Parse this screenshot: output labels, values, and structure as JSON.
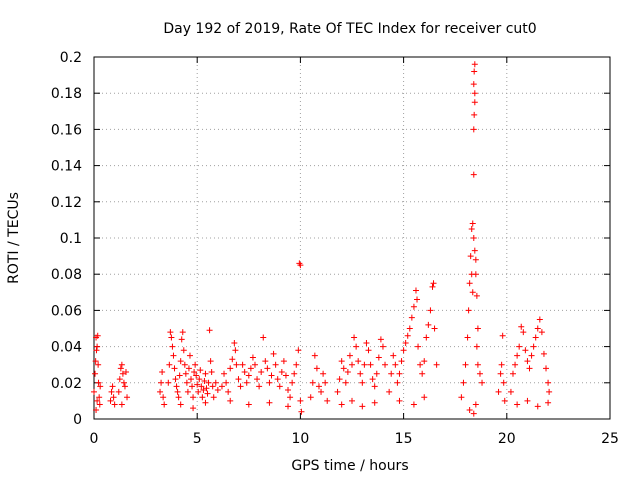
{
  "chart_data": {
    "type": "scatter",
    "title": "Day 192 of 2019, Rate Of TEC Index for receiver cut0",
    "xlabel": "GPS time / hours",
    "ylabel": "ROTI / TECUs",
    "xlim": [
      0,
      25
    ],
    "ylim": [
      0,
      0.2
    ],
    "xticks": [
      0,
      5,
      10,
      15,
      20,
      25
    ],
    "yticks": [
      0,
      0.02,
      0.04,
      0.06,
      0.08,
      0.1,
      0.12,
      0.14,
      0.16,
      0.18,
      0.2
    ],
    "xtick_labels": [
      "0",
      "5",
      "10",
      "15",
      "20",
      "25"
    ],
    "ytick_labels": [
      "0",
      "0.02",
      "0.04",
      "0.06",
      "0.08",
      "0.1",
      "0.12",
      "0.14",
      "0.16",
      "0.18",
      "0.2"
    ],
    "grid": true,
    "marker": "plus",
    "color": "#ff0000",
    "series": [
      {
        "name": "ROTI",
        "points": [
          [
            0.0,
            0.015
          ],
          [
            0.05,
            0.025
          ],
          [
            0.08,
            0.032
          ],
          [
            0.1,
            0.045
          ],
          [
            0.12,
            0.038
          ],
          [
            0.15,
            0.04
          ],
          [
            0.18,
            0.046
          ],
          [
            0.2,
            0.03
          ],
          [
            0.22,
            0.02
          ],
          [
            0.25,
            0.012
          ],
          [
            0.28,
            0.008
          ],
          [
            0.3,
            0.018
          ],
          [
            0.1,
            0.005
          ],
          [
            0.15,
            0.01
          ],
          [
            0.8,
            0.01
          ],
          [
            0.85,
            0.015
          ],
          [
            0.9,
            0.018
          ],
          [
            0.95,
            0.012
          ],
          [
            1.0,
            0.008
          ],
          [
            1.2,
            0.015
          ],
          [
            1.25,
            0.022
          ],
          [
            1.3,
            0.028
          ],
          [
            1.35,
            0.03
          ],
          [
            1.4,
            0.025
          ],
          [
            1.45,
            0.02
          ],
          [
            1.5,
            0.018
          ],
          [
            1.55,
            0.026
          ],
          [
            1.6,
            0.012
          ],
          [
            1.35,
            0.008
          ],
          [
            3.2,
            0.015
          ],
          [
            3.25,
            0.02
          ],
          [
            3.3,
            0.026
          ],
          [
            3.35,
            0.012
          ],
          [
            3.4,
            0.008
          ],
          [
            3.6,
            0.02
          ],
          [
            3.65,
            0.03
          ],
          [
            3.7,
            0.048
          ],
          [
            3.75,
            0.045
          ],
          [
            3.8,
            0.04
          ],
          [
            3.85,
            0.035
          ],
          [
            3.9,
            0.028
          ],
          [
            3.95,
            0.022
          ],
          [
            4.0,
            0.018
          ],
          [
            4.05,
            0.015
          ],
          [
            4.1,
            0.012
          ],
          [
            4.15,
            0.024
          ],
          [
            4.2,
            0.032
          ],
          [
            4.25,
            0.044
          ],
          [
            4.3,
            0.048
          ],
          [
            4.35,
            0.038
          ],
          [
            4.4,
            0.03
          ],
          [
            4.45,
            0.025
          ],
          [
            4.5,
            0.02
          ],
          [
            4.55,
            0.015
          ],
          [
            4.6,
            0.028
          ],
          [
            4.65,
            0.035
          ],
          [
            4.7,
            0.022
          ],
          [
            4.75,
            0.018
          ],
          [
            4.8,
            0.012
          ],
          [
            4.85,
            0.026
          ],
          [
            4.9,
            0.03
          ],
          [
            4.95,
            0.024
          ],
          [
            5.0,
            0.019
          ],
          [
            5.05,
            0.015
          ],
          [
            5.1,
            0.022
          ],
          [
            5.15,
            0.027
          ],
          [
            5.2,
            0.018
          ],
          [
            5.25,
            0.012
          ],
          [
            5.3,
            0.016
          ],
          [
            5.35,
            0.021
          ],
          [
            5.4,
            0.025
          ],
          [
            5.45,
            0.017
          ],
          [
            5.5,
            0.014
          ],
          [
            5.55,
            0.02
          ],
          [
            5.6,
            0.049
          ],
          [
            5.65,
            0.032
          ],
          [
            5.7,
            0.026
          ],
          [
            5.75,
            0.018
          ],
          [
            5.8,
            0.012
          ],
          [
            5.9,
            0.02
          ],
          [
            6.0,
            0.016
          ],
          [
            4.2,
            0.008
          ],
          [
            4.8,
            0.006
          ],
          [
            5.4,
            0.009
          ],
          [
            6.2,
            0.018
          ],
          [
            6.3,
            0.025
          ],
          [
            6.4,
            0.02
          ],
          [
            6.5,
            0.015
          ],
          [
            6.6,
            0.028
          ],
          [
            6.7,
            0.033
          ],
          [
            6.8,
            0.042
          ],
          [
            6.85,
            0.038
          ],
          [
            6.9,
            0.03
          ],
          [
            7.0,
            0.022
          ],
          [
            7.1,
            0.018
          ],
          [
            7.2,
            0.03
          ],
          [
            7.3,
            0.026
          ],
          [
            7.4,
            0.02
          ],
          [
            7.5,
            0.024
          ],
          [
            7.6,
            0.028
          ],
          [
            7.7,
            0.034
          ],
          [
            7.8,
            0.03
          ],
          [
            7.9,
            0.022
          ],
          [
            8.0,
            0.018
          ],
          [
            8.1,
            0.026
          ],
          [
            8.2,
            0.045
          ],
          [
            8.3,
            0.032
          ],
          [
            8.4,
            0.028
          ],
          [
            8.5,
            0.02
          ],
          [
            8.6,
            0.024
          ],
          [
            8.7,
            0.036
          ],
          [
            8.8,
            0.03
          ],
          [
            8.9,
            0.022
          ],
          [
            9.0,
            0.018
          ],
          [
            9.1,
            0.026
          ],
          [
            9.2,
            0.032
          ],
          [
            9.3,
            0.024
          ],
          [
            9.4,
            0.016
          ],
          [
            9.5,
            0.012
          ],
          [
            9.6,
            0.02
          ],
          [
            9.7,
            0.025
          ],
          [
            9.8,
            0.03
          ],
          [
            9.9,
            0.038
          ],
          [
            10.0,
            0.01
          ],
          [
            10.05,
            0.004
          ],
          [
            6.6,
            0.01
          ],
          [
            7.5,
            0.008
          ],
          [
            8.5,
            0.009
          ],
          [
            9.4,
            0.007
          ],
          [
            9.95,
            0.086
          ],
          [
            10.0,
            0.085
          ],
          [
            10.5,
            0.012
          ],
          [
            10.6,
            0.02
          ],
          [
            10.7,
            0.035
          ],
          [
            10.8,
            0.028
          ],
          [
            10.9,
            0.018
          ],
          [
            11.0,
            0.015
          ],
          [
            11.1,
            0.025
          ],
          [
            11.2,
            0.02
          ],
          [
            11.3,
            0.01
          ],
          [
            11.8,
            0.015
          ],
          [
            11.9,
            0.022
          ],
          [
            12.0,
            0.032
          ],
          [
            12.1,
            0.028
          ],
          [
            12.2,
            0.02
          ],
          [
            12.3,
            0.026
          ],
          [
            12.4,
            0.035
          ],
          [
            12.5,
            0.03
          ],
          [
            12.6,
            0.045
          ],
          [
            12.7,
            0.04
          ],
          [
            12.8,
            0.032
          ],
          [
            12.9,
            0.025
          ],
          [
            13.0,
            0.02
          ],
          [
            13.1,
            0.03
          ],
          [
            13.2,
            0.042
          ],
          [
            13.3,
            0.038
          ],
          [
            13.4,
            0.03
          ],
          [
            13.5,
            0.022
          ],
          [
            13.6,
            0.018
          ],
          [
            13.7,
            0.025
          ],
          [
            13.8,
            0.034
          ],
          [
            13.9,
            0.044
          ],
          [
            14.0,
            0.04
          ],
          [
            14.1,
            0.03
          ],
          [
            12.0,
            0.008
          ],
          [
            12.5,
            0.01
          ],
          [
            13.0,
            0.007
          ],
          [
            13.6,
            0.009
          ],
          [
            14.3,
            0.015
          ],
          [
            14.4,
            0.025
          ],
          [
            14.5,
            0.035
          ],
          [
            14.6,
            0.03
          ],
          [
            14.7,
            0.02
          ],
          [
            14.8,
            0.025
          ],
          [
            14.9,
            0.032
          ],
          [
            15.0,
            0.038
          ],
          [
            15.1,
            0.042
          ],
          [
            15.2,
            0.046
          ],
          [
            15.3,
            0.05
          ],
          [
            15.4,
            0.056
          ],
          [
            15.5,
            0.062
          ],
          [
            15.6,
            0.071
          ],
          [
            15.65,
            0.066
          ],
          [
            15.7,
            0.04
          ],
          [
            15.8,
            0.03
          ],
          [
            15.9,
            0.025
          ],
          [
            16.0,
            0.032
          ],
          [
            16.1,
            0.045
          ],
          [
            16.2,
            0.052
          ],
          [
            16.3,
            0.06
          ],
          [
            16.4,
            0.073
          ],
          [
            16.45,
            0.075
          ],
          [
            16.5,
            0.05
          ],
          [
            16.6,
            0.03
          ],
          [
            14.8,
            0.01
          ],
          [
            15.5,
            0.008
          ],
          [
            16.0,
            0.012
          ],
          [
            17.8,
            0.012
          ],
          [
            17.9,
            0.02
          ],
          [
            18.0,
            0.03
          ],
          [
            18.1,
            0.045
          ],
          [
            18.15,
            0.06
          ],
          [
            18.2,
            0.075
          ],
          [
            18.25,
            0.09
          ],
          [
            18.3,
            0.105
          ],
          [
            18.35,
            0.108
          ],
          [
            18.4,
            0.1
          ],
          [
            18.45,
            0.093
          ],
          [
            18.5,
            0.08
          ],
          [
            18.55,
            0.068
          ],
          [
            18.6,
            0.05
          ],
          [
            18.4,
            0.135
          ],
          [
            18.4,
            0.16
          ],
          [
            18.42,
            0.168
          ],
          [
            18.45,
            0.175
          ],
          [
            18.4,
            0.185
          ],
          [
            18.45,
            0.18
          ],
          [
            18.42,
            0.192
          ],
          [
            18.45,
            0.196
          ],
          [
            18.3,
            0.08
          ],
          [
            18.35,
            0.07
          ],
          [
            18.5,
            0.088
          ],
          [
            18.55,
            0.04
          ],
          [
            18.6,
            0.03
          ],
          [
            18.7,
            0.025
          ],
          [
            18.8,
            0.02
          ],
          [
            18.2,
            0.005
          ],
          [
            18.4,
            0.003
          ],
          [
            18.5,
            0.008
          ],
          [
            19.6,
            0.015
          ],
          [
            19.7,
            0.025
          ],
          [
            19.75,
            0.03
          ],
          [
            19.8,
            0.046
          ],
          [
            19.85,
            0.02
          ],
          [
            19.9,
            0.01
          ],
          [
            20.2,
            0.015
          ],
          [
            20.3,
            0.025
          ],
          [
            20.4,
            0.03
          ],
          [
            20.5,
            0.035
          ],
          [
            20.6,
            0.04
          ],
          [
            20.7,
            0.051
          ],
          [
            20.8,
            0.048
          ],
          [
            20.9,
            0.038
          ],
          [
            21.0,
            0.032
          ],
          [
            21.1,
            0.028
          ],
          [
            21.2,
            0.035
          ],
          [
            21.3,
            0.04
          ],
          [
            21.4,
            0.045
          ],
          [
            21.5,
            0.05
          ],
          [
            21.6,
            0.055
          ],
          [
            21.7,
            0.048
          ],
          [
            21.8,
            0.036
          ],
          [
            21.9,
            0.028
          ],
          [
            22.0,
            0.02
          ],
          [
            22.05,
            0.015
          ],
          [
            20.5,
            0.008
          ],
          [
            21.0,
            0.01
          ],
          [
            21.5,
            0.007
          ],
          [
            22.0,
            0.009
          ]
        ]
      }
    ]
  }
}
